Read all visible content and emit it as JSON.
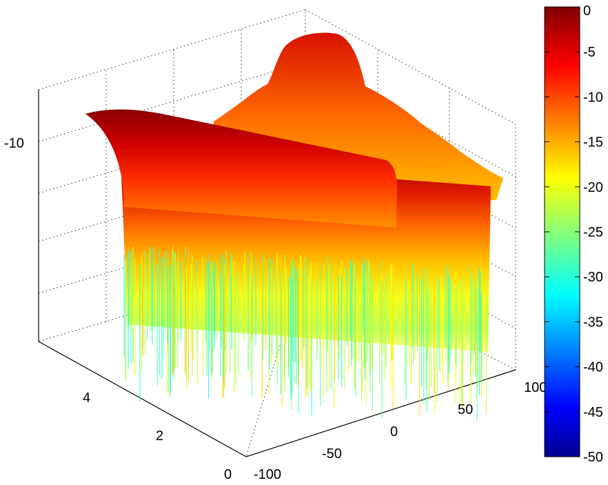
{
  "chart_data": {
    "type": "surface3d",
    "title": "",
    "xlabel": "",
    "ylabel": "",
    "zlabel": "",
    "x_axis": {
      "range": [
        -100,
        100
      ],
      "ticks": [
        "-100",
        "-50",
        "0",
        "50",
        "100"
      ]
    },
    "y_axis": {
      "range": [
        0,
        5
      ],
      "ticks": [
        "0",
        "2",
        "4"
      ]
    },
    "z_axis": {
      "ticks": [
        "-10"
      ]
    },
    "grid": true,
    "colormap": "jet",
    "colorbar": {
      "range": [
        -50,
        0
      ],
      "ticks": [
        "0",
        "-5",
        "-10",
        "-15",
        "-20",
        "-25",
        "-30",
        "-35",
        "-40",
        "-45",
        "-50"
      ],
      "placement": "right"
    },
    "surface": {
      "description_values": "normalized beam pattern in dB vs angle (x, degrees) and y",
      "peak_db": 0,
      "floor_db": -50,
      "y_samples": [
        0,
        0.5,
        1,
        1.5,
        2,
        2.5,
        3,
        3.5,
        4,
        4.5,
        5
      ],
      "x_samples": [
        -100,
        -80,
        -60,
        -40,
        -20,
        0,
        20,
        40,
        60,
        80,
        100
      ]
    }
  }
}
